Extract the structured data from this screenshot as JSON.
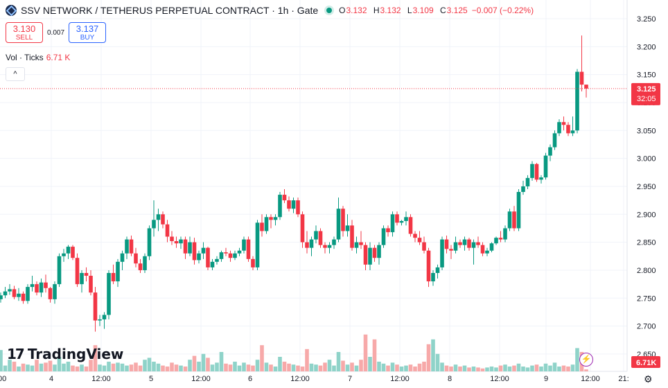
{
  "header": {
    "title": "SSV NETWORK / TETHERUS PERPETUAL CONTRACT · 1h · Gate",
    "ohlc": {
      "o_label": "O",
      "o": "3.132",
      "h_label": "H",
      "h": "3.132",
      "l_label": "L",
      "l": "3.109",
      "c_label": "C",
      "c": "3.125",
      "change": "−0.007 (−0.22%)"
    }
  },
  "trade": {
    "sell_price": "3.130",
    "sell_label": "SELL",
    "spread": "0.007",
    "buy_price": "3.137",
    "buy_label": "BUY"
  },
  "volume": {
    "label": "Vol · Ticks",
    "value": "6.71 K"
  },
  "collapse_label": "^",
  "logo": {
    "mark": "17",
    "text": "TradingView"
  },
  "gear_icon": "gear-icon",
  "colors": {
    "up": "#089981",
    "down": "#f23645",
    "up_vol": "#8fd3c9",
    "down_vol": "#f7a9a9",
    "grid": "#f0f3fa"
  },
  "chart_data": {
    "type": "candlestick",
    "y_ticks": [
      "3.250",
      "3.200",
      "3.150",
      "3.100",
      "3.050",
      "3.000",
      "2.950",
      "2.900",
      "2.850",
      "2.800",
      "2.750",
      "2.700",
      "2.650"
    ],
    "ylim": [
      2.64,
      3.25
    ],
    "x_ticks": [
      "4",
      "12:00",
      "5",
      "12:00",
      "6",
      "12:00",
      "7",
      "12:00",
      "8",
      "12:00",
      "9",
      "12:00",
      "21:"
    ],
    "last_price": "3.125",
    "countdown": "32:05",
    "volume_badge": "6.71K",
    "candles": [
      {
        "o": 2.748,
        "h": 2.76,
        "l": 2.742,
        "c": 2.755,
        "v": 0.22
      },
      {
        "o": 2.755,
        "h": 2.77,
        "l": 2.75,
        "c": 2.762,
        "v": 0.06
      },
      {
        "o": 2.762,
        "h": 2.775,
        "l": 2.756,
        "c": 2.766,
        "v": 0.12
      },
      {
        "o": 2.766,
        "h": 2.772,
        "l": 2.748,
        "c": 2.752,
        "v": 0.1
      },
      {
        "o": 2.752,
        "h": 2.768,
        "l": 2.745,
        "c": 2.758,
        "v": 0.05
      },
      {
        "o": 2.758,
        "h": 2.762,
        "l": 2.74,
        "c": 2.745,
        "v": 0.08
      },
      {
        "o": 2.745,
        "h": 2.775,
        "l": 2.74,
        "c": 2.77,
        "v": 0.07
      },
      {
        "o": 2.77,
        "h": 2.79,
        "l": 2.762,
        "c": 2.775,
        "v": 0.06
      },
      {
        "o": 2.775,
        "h": 2.78,
        "l": 2.755,
        "c": 2.76,
        "v": 0.12
      },
      {
        "o": 2.76,
        "h": 2.785,
        "l": 2.752,
        "c": 2.778,
        "v": 0.08
      },
      {
        "o": 2.778,
        "h": 2.792,
        "l": 2.76,
        "c": 2.768,
        "v": 0.09
      },
      {
        "o": 2.768,
        "h": 2.77,
        "l": 2.742,
        "c": 2.748,
        "v": 0.11
      },
      {
        "o": 2.748,
        "h": 2.78,
        "l": 2.74,
        "c": 2.775,
        "v": 0.07
      },
      {
        "o": 2.775,
        "h": 2.83,
        "l": 2.77,
        "c": 2.825,
        "v": 0.15
      },
      {
        "o": 2.825,
        "h": 2.838,
        "l": 2.815,
        "c": 2.83,
        "v": 0.08
      },
      {
        "o": 2.83,
        "h": 2.845,
        "l": 2.82,
        "c": 2.842,
        "v": 0.1
      },
      {
        "o": 2.842,
        "h": 2.845,
        "l": 2.818,
        "c": 2.822,
        "v": 0.06
      },
      {
        "o": 2.822,
        "h": 2.83,
        "l": 2.77,
        "c": 2.775,
        "v": 0.05
      },
      {
        "o": 2.775,
        "h": 2.8,
        "l": 2.76,
        "c": 2.795,
        "v": 0.07
      },
      {
        "o": 2.795,
        "h": 2.805,
        "l": 2.78,
        "c": 2.79,
        "v": 0.05
      },
      {
        "o": 2.79,
        "h": 2.8,
        "l": 2.755,
        "c": 2.76,
        "v": 0.12
      },
      {
        "o": 2.76,
        "h": 2.77,
        "l": 2.69,
        "c": 2.71,
        "v": 0.27
      },
      {
        "o": 2.71,
        "h": 2.72,
        "l": 2.7,
        "c": 2.712,
        "v": 0.07
      },
      {
        "o": 2.712,
        "h": 2.725,
        "l": 2.695,
        "c": 2.72,
        "v": 0.06
      },
      {
        "o": 2.72,
        "h": 2.8,
        "l": 2.712,
        "c": 2.795,
        "v": 0.1
      },
      {
        "o": 2.795,
        "h": 2.81,
        "l": 2.775,
        "c": 2.78,
        "v": 0.08
      },
      {
        "o": 2.78,
        "h": 2.82,
        "l": 2.77,
        "c": 2.815,
        "v": 0.09
      },
      {
        "o": 2.815,
        "h": 2.835,
        "l": 2.8,
        "c": 2.83,
        "v": 0.08
      },
      {
        "o": 2.83,
        "h": 2.86,
        "l": 2.82,
        "c": 2.855,
        "v": 0.06
      },
      {
        "o": 2.855,
        "h": 2.862,
        "l": 2.825,
        "c": 2.83,
        "v": 0.07
      },
      {
        "o": 2.83,
        "h": 2.84,
        "l": 2.805,
        "c": 2.812,
        "v": 0.09
      },
      {
        "o": 2.812,
        "h": 2.82,
        "l": 2.795,
        "c": 2.8,
        "v": 0.06
      },
      {
        "o": 2.8,
        "h": 2.83,
        "l": 2.795,
        "c": 2.825,
        "v": 0.12
      },
      {
        "o": 2.825,
        "h": 2.88,
        "l": 2.818,
        "c": 2.875,
        "v": 0.14
      },
      {
        "o": 2.875,
        "h": 2.925,
        "l": 2.86,
        "c": 2.89,
        "v": 0.1
      },
      {
        "o": 2.89,
        "h": 2.91,
        "l": 2.87,
        "c": 2.9,
        "v": 0.08
      },
      {
        "o": 2.9,
        "h": 2.905,
        "l": 2.875,
        "c": 2.882,
        "v": 0.06
      },
      {
        "o": 2.882,
        "h": 2.89,
        "l": 2.85,
        "c": 2.86,
        "v": 0.05
      },
      {
        "o": 2.86,
        "h": 2.87,
        "l": 2.845,
        "c": 2.852,
        "v": 0.09
      },
      {
        "o": 2.852,
        "h": 2.86,
        "l": 2.84,
        "c": 2.848,
        "v": 0.07
      },
      {
        "o": 2.848,
        "h": 2.86,
        "l": 2.838,
        "c": 2.855,
        "v": 0.06
      },
      {
        "o": 2.855,
        "h": 2.86,
        "l": 2.82,
        "c": 2.83,
        "v": 0.05
      },
      {
        "o": 2.83,
        "h": 2.86,
        "l": 2.825,
        "c": 2.85,
        "v": 0.12
      },
      {
        "o": 2.85,
        "h": 2.858,
        "l": 2.81,
        "c": 2.818,
        "v": 0.16
      },
      {
        "o": 2.818,
        "h": 2.835,
        "l": 2.812,
        "c": 2.83,
        "v": 0.1
      },
      {
        "o": 2.83,
        "h": 2.85,
        "l": 2.82,
        "c": 2.84,
        "v": 0.18
      },
      {
        "o": 2.84,
        "h": 2.842,
        "l": 2.8,
        "c": 2.805,
        "v": 0.14
      },
      {
        "o": 2.805,
        "h": 2.82,
        "l": 2.8,
        "c": 2.815,
        "v": 0.07
      },
      {
        "o": 2.815,
        "h": 2.825,
        "l": 2.81,
        "c": 2.82,
        "v": 0.09
      },
      {
        "o": 2.82,
        "h": 2.835,
        "l": 2.815,
        "c": 2.832,
        "v": 0.2
      },
      {
        "o": 2.832,
        "h": 2.84,
        "l": 2.825,
        "c": 2.83,
        "v": 0.08
      },
      {
        "o": 2.83,
        "h": 2.835,
        "l": 2.815,
        "c": 2.822,
        "v": 0.07
      },
      {
        "o": 2.822,
        "h": 2.835,
        "l": 2.818,
        "c": 2.83,
        "v": 0.1
      },
      {
        "o": 2.83,
        "h": 2.84,
        "l": 2.825,
        "c": 2.835,
        "v": 0.06
      },
      {
        "o": 2.835,
        "h": 2.86,
        "l": 2.83,
        "c": 2.855,
        "v": 0.09
      },
      {
        "o": 2.855,
        "h": 2.86,
        "l": 2.815,
        "c": 2.82,
        "v": 0.07
      },
      {
        "o": 2.82,
        "h": 2.825,
        "l": 2.8,
        "c": 2.805,
        "v": 0.06
      },
      {
        "o": 2.805,
        "h": 2.89,
        "l": 2.8,
        "c": 2.885,
        "v": 0.12
      },
      {
        "o": 2.885,
        "h": 2.9,
        "l": 2.86,
        "c": 2.87,
        "v": 0.27
      },
      {
        "o": 2.87,
        "h": 2.9,
        "l": 2.865,
        "c": 2.895,
        "v": 0.09
      },
      {
        "o": 2.895,
        "h": 2.9,
        "l": 2.875,
        "c": 2.89,
        "v": 0.07
      },
      {
        "o": 2.89,
        "h": 2.9,
        "l": 2.88,
        "c": 2.895,
        "v": 0.05
      },
      {
        "o": 2.895,
        "h": 2.94,
        "l": 2.89,
        "c": 2.935,
        "v": 0.15
      },
      {
        "o": 2.935,
        "h": 2.945,
        "l": 2.92,
        "c": 2.925,
        "v": 0.1
      },
      {
        "o": 2.925,
        "h": 2.932,
        "l": 2.905,
        "c": 2.91,
        "v": 0.08
      },
      {
        "o": 2.91,
        "h": 2.93,
        "l": 2.902,
        "c": 2.925,
        "v": 0.07
      },
      {
        "o": 2.925,
        "h": 2.93,
        "l": 2.895,
        "c": 2.9,
        "v": 0.06
      },
      {
        "o": 2.9,
        "h": 2.905,
        "l": 2.84,
        "c": 2.85,
        "v": 0.05
      },
      {
        "o": 2.85,
        "h": 2.87,
        "l": 2.83,
        "c": 2.84,
        "v": 0.23
      },
      {
        "o": 2.84,
        "h": 2.86,
        "l": 2.825,
        "c": 2.855,
        "v": 0.08
      },
      {
        "o": 2.855,
        "h": 2.88,
        "l": 2.848,
        "c": 2.87,
        "v": 0.07
      },
      {
        "o": 2.87,
        "h": 2.875,
        "l": 2.84,
        "c": 2.845,
        "v": 0.06
      },
      {
        "o": 2.845,
        "h": 2.85,
        "l": 2.83,
        "c": 2.84,
        "v": 0.09
      },
      {
        "o": 2.84,
        "h": 2.85,
        "l": 2.83,
        "c": 2.845,
        "v": 0.12
      },
      {
        "o": 2.845,
        "h": 2.86,
        "l": 2.838,
        "c": 2.855,
        "v": 0.06
      },
      {
        "o": 2.855,
        "h": 2.93,
        "l": 2.85,
        "c": 2.91,
        "v": 0.2
      },
      {
        "o": 2.91,
        "h": 2.915,
        "l": 2.86,
        "c": 2.87,
        "v": 0.11
      },
      {
        "o": 2.87,
        "h": 2.9,
        "l": 2.86,
        "c": 2.88,
        "v": 0.07
      },
      {
        "o": 2.88,
        "h": 2.89,
        "l": 2.835,
        "c": 2.84,
        "v": 0.09
      },
      {
        "o": 2.84,
        "h": 2.86,
        "l": 2.83,
        "c": 2.85,
        "v": 0.06
      },
      {
        "o": 2.85,
        "h": 2.87,
        "l": 2.838,
        "c": 2.845,
        "v": 0.12
      },
      {
        "o": 2.845,
        "h": 2.85,
        "l": 2.8,
        "c": 2.81,
        "v": 0.38
      },
      {
        "o": 2.81,
        "h": 2.85,
        "l": 2.8,
        "c": 2.84,
        "v": 0.15
      },
      {
        "o": 2.84,
        "h": 2.845,
        "l": 2.815,
        "c": 2.822,
        "v": 0.33
      },
      {
        "o": 2.822,
        "h": 2.85,
        "l": 2.81,
        "c": 2.845,
        "v": 0.1
      },
      {
        "o": 2.845,
        "h": 2.88,
        "l": 2.84,
        "c": 2.875,
        "v": 0.08
      },
      {
        "o": 2.875,
        "h": 2.88,
        "l": 2.86,
        "c": 2.868,
        "v": 0.06
      },
      {
        "o": 2.868,
        "h": 2.905,
        "l": 2.86,
        "c": 2.9,
        "v": 0.09
      },
      {
        "o": 2.9,
        "h": 2.905,
        "l": 2.88,
        "c": 2.885,
        "v": 0.07
      },
      {
        "o": 2.885,
        "h": 2.89,
        "l": 2.88,
        "c": 2.888,
        "v": 0.05
      },
      {
        "o": 2.888,
        "h": 2.905,
        "l": 2.88,
        "c": 2.895,
        "v": 0.06
      },
      {
        "o": 2.895,
        "h": 2.9,
        "l": 2.86,
        "c": 2.865,
        "v": 0.07
      },
      {
        "o": 2.865,
        "h": 2.87,
        "l": 2.85,
        "c": 2.858,
        "v": 0.05
      },
      {
        "o": 2.858,
        "h": 2.87,
        "l": 2.845,
        "c": 2.85,
        "v": 0.08
      },
      {
        "o": 2.85,
        "h": 2.86,
        "l": 2.83,
        "c": 2.835,
        "v": 0.1
      },
      {
        "o": 2.835,
        "h": 2.84,
        "l": 2.77,
        "c": 2.78,
        "v": 0.28
      },
      {
        "o": 2.78,
        "h": 2.8,
        "l": 2.772,
        "c": 2.795,
        "v": 0.33
      },
      {
        "o": 2.795,
        "h": 2.81,
        "l": 2.785,
        "c": 2.805,
        "v": 0.18
      },
      {
        "o": 2.805,
        "h": 2.86,
        "l": 2.8,
        "c": 2.855,
        "v": 0.09
      },
      {
        "o": 2.855,
        "h": 2.862,
        "l": 2.83,
        "c": 2.838,
        "v": 0.06
      },
      {
        "o": 2.838,
        "h": 2.845,
        "l": 2.82,
        "c": 2.835,
        "v": 0.05
      },
      {
        "o": 2.835,
        "h": 2.86,
        "l": 2.83,
        "c": 2.85,
        "v": 0.07
      },
      {
        "o": 2.85,
        "h": 2.855,
        "l": 2.84,
        "c": 2.845,
        "v": 0.05
      },
      {
        "o": 2.845,
        "h": 2.86,
        "l": 2.835,
        "c": 2.855,
        "v": 0.06
      },
      {
        "o": 2.855,
        "h": 2.858,
        "l": 2.835,
        "c": 2.84,
        "v": 0.04
      },
      {
        "o": 2.84,
        "h": 2.855,
        "l": 2.81,
        "c": 2.85,
        "v": 0.05
      },
      {
        "o": 2.85,
        "h": 2.86,
        "l": 2.84,
        "c": 2.845,
        "v": 0.04
      },
      {
        "o": 2.845,
        "h": 2.85,
        "l": 2.825,
        "c": 2.83,
        "v": 0.03
      },
      {
        "o": 2.83,
        "h": 2.84,
        "l": 2.825,
        "c": 2.835,
        "v": 0.04
      },
      {
        "o": 2.835,
        "h": 2.85,
        "l": 2.832,
        "c": 2.848,
        "v": 0.05
      },
      {
        "o": 2.848,
        "h": 2.86,
        "l": 2.845,
        "c": 2.858,
        "v": 0.04
      },
      {
        "o": 2.858,
        "h": 2.87,
        "l": 2.85,
        "c": 2.855,
        "v": 0.06
      },
      {
        "o": 2.855,
        "h": 2.88,
        "l": 2.85,
        "c": 2.875,
        "v": 0.07
      },
      {
        "o": 2.875,
        "h": 2.91,
        "l": 2.87,
        "c": 2.905,
        "v": 0.05
      },
      {
        "o": 2.905,
        "h": 2.915,
        "l": 2.87,
        "c": 2.875,
        "v": 0.06
      },
      {
        "o": 2.875,
        "h": 2.945,
        "l": 2.87,
        "c": 2.94,
        "v": 0.08
      },
      {
        "o": 2.94,
        "h": 2.96,
        "l": 2.935,
        "c": 2.95,
        "v": 0.05
      },
      {
        "o": 2.95,
        "h": 2.97,
        "l": 2.945,
        "c": 2.965,
        "v": 0.04
      },
      {
        "o": 2.965,
        "h": 2.995,
        "l": 2.96,
        "c": 2.99,
        "v": 0.06
      },
      {
        "o": 2.99,
        "h": 2.992,
        "l": 2.958,
        "c": 2.962,
        "v": 0.07
      },
      {
        "o": 2.962,
        "h": 2.97,
        "l": 2.955,
        "c": 2.966,
        "v": 0.05
      },
      {
        "o": 2.966,
        "h": 3.01,
        "l": 2.962,
        "c": 3.005,
        "v": 0.08
      },
      {
        "o": 3.005,
        "h": 3.025,
        "l": 2.995,
        "c": 3.02,
        "v": 0.06
      },
      {
        "o": 3.02,
        "h": 3.05,
        "l": 3.015,
        "c": 3.045,
        "v": 0.09
      },
      {
        "o": 3.045,
        "h": 3.07,
        "l": 3.04,
        "c": 3.065,
        "v": 0.05
      },
      {
        "o": 3.065,
        "h": 3.075,
        "l": 3.05,
        "c": 3.06,
        "v": 0.06
      },
      {
        "o": 3.06,
        "h": 3.065,
        "l": 3.04,
        "c": 3.045,
        "v": 0.05
      },
      {
        "o": 3.045,
        "h": 3.075,
        "l": 3.04,
        "c": 3.05,
        "v": 0.07
      },
      {
        "o": 3.05,
        "h": 3.16,
        "l": 3.045,
        "c": 3.155,
        "v": 0.24
      },
      {
        "o": 3.155,
        "h": 3.22,
        "l": 3.12,
        "c": 3.132,
        "v": 0.2
      },
      {
        "o": 3.132,
        "h": 3.132,
        "l": 3.109,
        "c": 3.125,
        "v": 0.02
      }
    ]
  }
}
